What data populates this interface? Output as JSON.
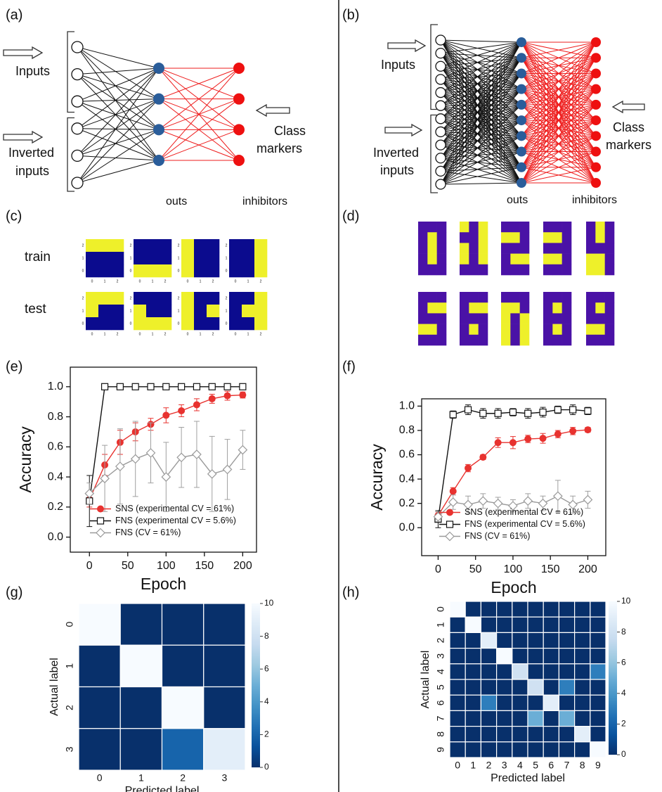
{
  "panels": [
    "(a)",
    "(b)",
    "(c)",
    "(d)",
    "(e)",
    "(f)",
    "(g)",
    "(h)"
  ],
  "diagrams": [
    {
      "inputs": "Inputs",
      "inverted": [
        "Inverted",
        "inputs"
      ],
      "markers": [
        "Class",
        "markers"
      ],
      "outs": "outs",
      "inhibitors": "inhibitors",
      "n_inputs": 6,
      "n_outs": 4
    },
    {
      "inputs": "Inputs",
      "inverted": [
        "Inverted",
        "inputs"
      ],
      "markers": [
        "Class",
        "markers"
      ],
      "outs": "outs",
      "inhibitors": "inhibitors",
      "n_inputs": 12,
      "n_outs": 10
    }
  ],
  "images": {
    "row_labels": [
      "train",
      "test"
    ],
    "ticks": [
      "0",
      "1",
      "2"
    ],
    "c": [
      [
        [
          1,
          1,
          1
        ],
        [
          0,
          0,
          0
        ],
        [
          0,
          0,
          0
        ]
      ],
      [
        [
          0,
          0,
          0
        ],
        [
          0,
          0,
          0
        ],
        [
          1,
          1,
          1
        ]
      ],
      [
        [
          1,
          0,
          0
        ],
        [
          1,
          0,
          0
        ],
        [
          1,
          0,
          0
        ]
      ],
      [
        [
          0,
          0,
          1
        ],
        [
          0,
          0,
          1
        ],
        [
          0,
          0,
          1
        ]
      ],
      [
        [
          1,
          1,
          1
        ],
        [
          1,
          0,
          0
        ],
        [
          0,
          0,
          0
        ]
      ],
      [
        [
          0,
          0,
          0
        ],
        [
          1,
          0,
          0
        ],
        [
          1,
          1,
          1
        ]
      ],
      [
        [
          1,
          0,
          0
        ],
        [
          1,
          0,
          1
        ],
        [
          1,
          0,
          0
        ]
      ],
      [
        [
          0,
          0,
          1
        ],
        [
          0,
          1,
          1
        ],
        [
          0,
          0,
          1
        ]
      ]
    ],
    "d": [
      [
        [
          1,
          1,
          1
        ],
        [
          1,
          0,
          1
        ],
        [
          1,
          0,
          1
        ],
        [
          1,
          0,
          1
        ],
        [
          1,
          1,
          1
        ]
      ],
      [
        [
          0,
          1,
          0
        ],
        [
          1,
          1,
          0
        ],
        [
          0,
          1,
          0
        ],
        [
          0,
          1,
          0
        ],
        [
          1,
          1,
          1
        ]
      ],
      [
        [
          1,
          1,
          1
        ],
        [
          0,
          0,
          1
        ],
        [
          1,
          1,
          1
        ],
        [
          1,
          0,
          0
        ],
        [
          1,
          1,
          1
        ]
      ],
      [
        [
          1,
          1,
          1
        ],
        [
          0,
          0,
          1
        ],
        [
          1,
          1,
          1
        ],
        [
          0,
          0,
          1
        ],
        [
          1,
          1,
          1
        ]
      ],
      [
        [
          1,
          0,
          1
        ],
        [
          1,
          0,
          1
        ],
        [
          1,
          1,
          1
        ],
        [
          0,
          0,
          1
        ],
        [
          0,
          0,
          1
        ]
      ],
      [
        [
          1,
          1,
          1
        ],
        [
          1,
          0,
          0
        ],
        [
          1,
          1,
          1
        ],
        [
          0,
          0,
          1
        ],
        [
          1,
          1,
          1
        ]
      ],
      [
        [
          1,
          1,
          1
        ],
        [
          1,
          0,
          0
        ],
        [
          1,
          1,
          1
        ],
        [
          1,
          0,
          1
        ],
        [
          1,
          1,
          1
        ]
      ],
      [
        [
          1,
          1,
          1
        ],
        [
          0,
          0,
          1
        ],
        [
          0,
          1,
          0
        ],
        [
          0,
          1,
          0
        ],
        [
          0,
          1,
          0
        ]
      ],
      [
        [
          1,
          1,
          1
        ],
        [
          1,
          0,
          1
        ],
        [
          1,
          1,
          1
        ],
        [
          1,
          0,
          1
        ],
        [
          1,
          1,
          1
        ]
      ],
      [
        [
          1,
          1,
          1
        ],
        [
          1,
          0,
          1
        ],
        [
          1,
          1,
          1
        ],
        [
          0,
          0,
          1
        ],
        [
          1,
          1,
          1
        ]
      ]
    ]
  },
  "chart_data": [
    {
      "type": "line",
      "xlabel": "Epoch",
      "ylabel": "Accuracy",
      "x": [
        0,
        20,
        40,
        60,
        80,
        100,
        120,
        140,
        160,
        180,
        200
      ],
      "xlim": [
        -25,
        218
      ],
      "ylim": [
        -0.1,
        1.13
      ],
      "xticks": [
        0,
        50,
        100,
        150,
        200
      ],
      "yticks": [
        {
          "value": 0,
          "label": "0.0"
        },
        0.2,
        0.4,
        0.6,
        0.8,
        {
          "value": 1,
          "label": "1.0"
        }
      ],
      "legend": "lower right",
      "series": [
        {
          "name": "SNS (experimental CV = 61%)",
          "color": "#e8322f",
          "marker": "circle",
          "values": [
            0.25,
            0.48,
            0.63,
            0.7,
            0.75,
            0.81,
            0.84,
            0.88,
            0.92,
            0.94,
            0.945
          ],
          "errors": [
            0.05,
            0.07,
            0.08,
            0.06,
            0.04,
            0.05,
            0.04,
            0.04,
            0.03,
            0.03,
            0.02
          ]
        },
        {
          "name": "FNS (experimental CV = 5.6%)",
          "color": "#111111",
          "marker": "square",
          "values": [
            0.24,
            1,
            1,
            1,
            1,
            1,
            1,
            1,
            1,
            1,
            1
          ],
          "errors": [
            0.17,
            0,
            0,
            0,
            0,
            0,
            0,
            0,
            0,
            0,
            0
          ]
        },
        {
          "name": "FNS (CV = 61%)",
          "color": "#9a9a9a",
          "marker": "diamond",
          "values": [
            0.29,
            0.39,
            0.47,
            0.52,
            0.56,
            0.4,
            0.53,
            0.55,
            0.42,
            0.45,
            0.58
          ],
          "errors": [
            0.07,
            0.22,
            0.25,
            0.25,
            0.2,
            0.23,
            0.2,
            0.22,
            0.25,
            0.2,
            0.13
          ]
        }
      ]
    },
    {
      "type": "line",
      "xlabel": "Epoch",
      "ylabel": "Accuracy",
      "x": [
        0,
        20,
        40,
        60,
        80,
        100,
        120,
        140,
        160,
        180,
        200
      ],
      "xlim": [
        -22,
        224
      ],
      "ylim": [
        -0.23,
        1.06
      ],
      "xticks": [
        0,
        50,
        100,
        150,
        200
      ],
      "yticks": [
        {
          "value": 0,
          "label": "0.0"
        },
        0.2,
        0.4,
        0.6,
        0.8,
        {
          "value": 1,
          "label": "1.0"
        }
      ],
      "legend": "lower right",
      "series": [
        {
          "name": "SNS (experimental CV = 61%)",
          "color": "#e8322f",
          "marker": "circle",
          "values": [
            0.1,
            0.3,
            0.49,
            0.58,
            0.7,
            0.7,
            0.73,
            0.735,
            0.77,
            0.795,
            0.805
          ],
          "errors": [
            0.03,
            0.03,
            0.03,
            0.02,
            0.04,
            0.05,
            0.03,
            0.04,
            0.03,
            0.03,
            0.02
          ]
        },
        {
          "name": "FNS (experimental CV = 5.6%)",
          "color": "#111111",
          "marker": "square",
          "values": [
            0.07,
            0.93,
            0.97,
            0.94,
            0.94,
            0.95,
            0.94,
            0.95,
            0.97,
            0.97,
            0.96
          ],
          "errors": [
            0.07,
            0.03,
            0.04,
            0.04,
            0.04,
            0.03,
            0.04,
            0.04,
            0.03,
            0.04,
            0.03
          ]
        },
        {
          "name": "FNS (CV = 61%)",
          "color": "#9a9a9a",
          "marker": "diamond",
          "values": [
            0.09,
            0.21,
            0.19,
            0.22,
            0.2,
            0.18,
            0.22,
            0.2,
            0.26,
            0.19,
            0.23
          ],
          "errors": [
            0.04,
            0.06,
            0.07,
            0.06,
            0.05,
            0.05,
            0.06,
            0.06,
            0.13,
            0.07,
            0.07
          ]
        }
      ]
    },
    {
      "type": "heatmap",
      "xlabel": "Predicted label",
      "ylabel": "Actual label",
      "categories": [
        "0",
        "1",
        "2",
        "3"
      ],
      "values": [
        [
          10,
          0,
          0,
          0
        ],
        [
          0,
          10,
          0,
          0
        ],
        [
          0,
          0,
          10,
          0
        ],
        [
          0,
          0,
          2,
          9
        ]
      ],
      "clim": [
        0,
        10
      ],
      "cticks": [
        0,
        2,
        4,
        6,
        8,
        10
      ]
    },
    {
      "type": "heatmap",
      "xlabel": "Predicted label",
      "ylabel": "Actual label",
      "categories": [
        "0",
        "1",
        "2",
        "3",
        "4",
        "5",
        "6",
        "7",
        "8",
        "9"
      ],
      "values": [
        [
          10,
          0,
          0,
          0,
          0,
          0,
          0,
          0,
          0,
          0
        ],
        [
          0,
          10,
          0,
          0,
          0,
          0,
          0,
          0,
          0,
          0
        ],
        [
          0,
          0,
          9,
          0,
          0,
          0,
          0,
          0,
          0,
          0
        ],
        [
          0,
          0,
          0,
          10,
          0,
          0,
          0,
          0,
          0,
          0
        ],
        [
          0,
          0,
          0,
          0,
          8,
          0,
          0,
          0,
          0,
          3
        ],
        [
          0,
          0,
          0,
          0,
          0,
          8,
          0,
          3,
          0,
          0
        ],
        [
          0,
          0,
          3,
          0,
          0,
          0,
          9,
          0,
          0,
          0
        ],
        [
          0,
          0,
          0,
          0,
          0,
          5,
          0,
          5,
          0,
          0
        ],
        [
          0,
          0,
          0,
          0,
          0,
          0,
          0,
          0,
          9,
          0
        ],
        [
          0,
          0,
          0,
          0,
          0,
          0,
          0,
          0,
          0,
          10
        ]
      ],
      "clim": [
        0,
        10
      ],
      "cticks": [
        0,
        2,
        4,
        6,
        8,
        10
      ]
    }
  ]
}
